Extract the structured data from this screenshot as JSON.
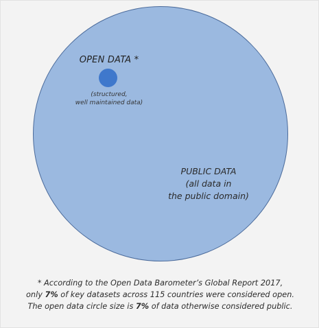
{
  "diagram": {
    "open_data": {
      "title": "OPEN DATA *",
      "subtitle_line1": "(structured,",
      "subtitle_line2": "well maintained data)"
    },
    "public_data": {
      "title": "PUBLIC DATA",
      "line2": "(all data in",
      "line3": "the public domain)"
    },
    "colors": {
      "public_circle": "#9bb9e0",
      "open_circle": "#3f78cc",
      "background": "#f3f3f3"
    }
  },
  "footnote": {
    "line1": "* According to the Open Data Barometer’s Global Report 2017,",
    "line2_pre": "only ",
    "line2_bold": "7%",
    "line2_post": " of key datasets across 115 countries were considered open.",
    "line3_pre": "The open data circle size is ",
    "line3_bold": "7%",
    "line3_post": " of data otherwise considered public."
  }
}
